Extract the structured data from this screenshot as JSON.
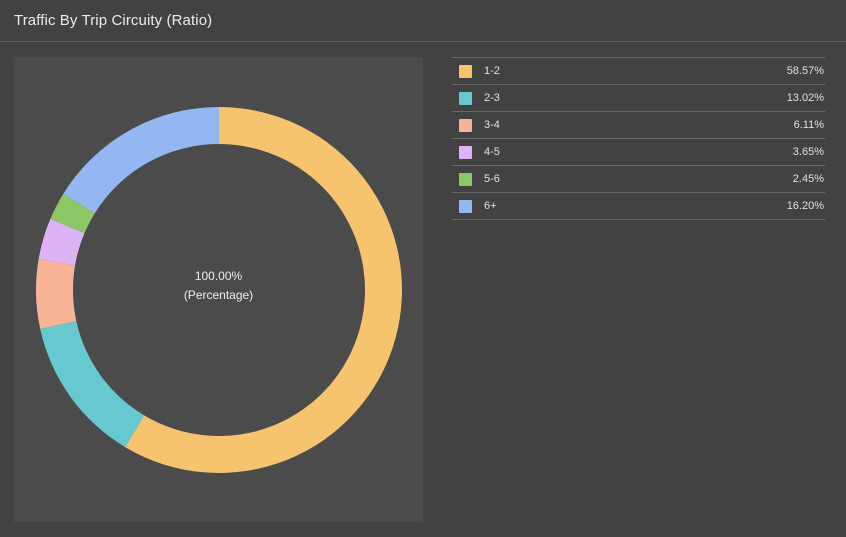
{
  "panel": {
    "title": "Traffic By Trip Circuity (Ratio)"
  },
  "center": {
    "value": "100.00%",
    "unit": "(Percentage)"
  },
  "legend": {
    "items": [
      {
        "label": "1-2",
        "value": "58.57%",
        "color": "#f6c36f"
      },
      {
        "label": "2-3",
        "value": "13.02%",
        "color": "#67c9d0"
      },
      {
        "label": "3-4",
        "value": "6.11%",
        "color": "#f9b497"
      },
      {
        "label": "4-5",
        "value": "3.65%",
        "color": "#ddb3f5"
      },
      {
        "label": "5-6",
        "value": "2.45%",
        "color": "#8bc865"
      },
      {
        "label": "6+",
        "value": "16.20%",
        "color": "#93b8f1"
      }
    ]
  },
  "chart_data": {
    "type": "pie",
    "variant": "donut",
    "categories": [
      "1-2",
      "2-3",
      "3-4",
      "4-5",
      "5-6",
      "6+"
    ],
    "values": [
      58.57,
      13.02,
      6.11,
      3.65,
      2.45,
      16.2
    ],
    "colors": [
      "#f6c36f",
      "#67c9d0",
      "#f9b497",
      "#ddb3f5",
      "#8bc865",
      "#93b8f1"
    ],
    "title": "Traffic By Trip Circuity (Ratio)",
    "center_label": "100.00%",
    "center_sublabel": "(Percentage)",
    "legend_placement": "right",
    "start_angle": "top",
    "direction": "clockwise"
  }
}
